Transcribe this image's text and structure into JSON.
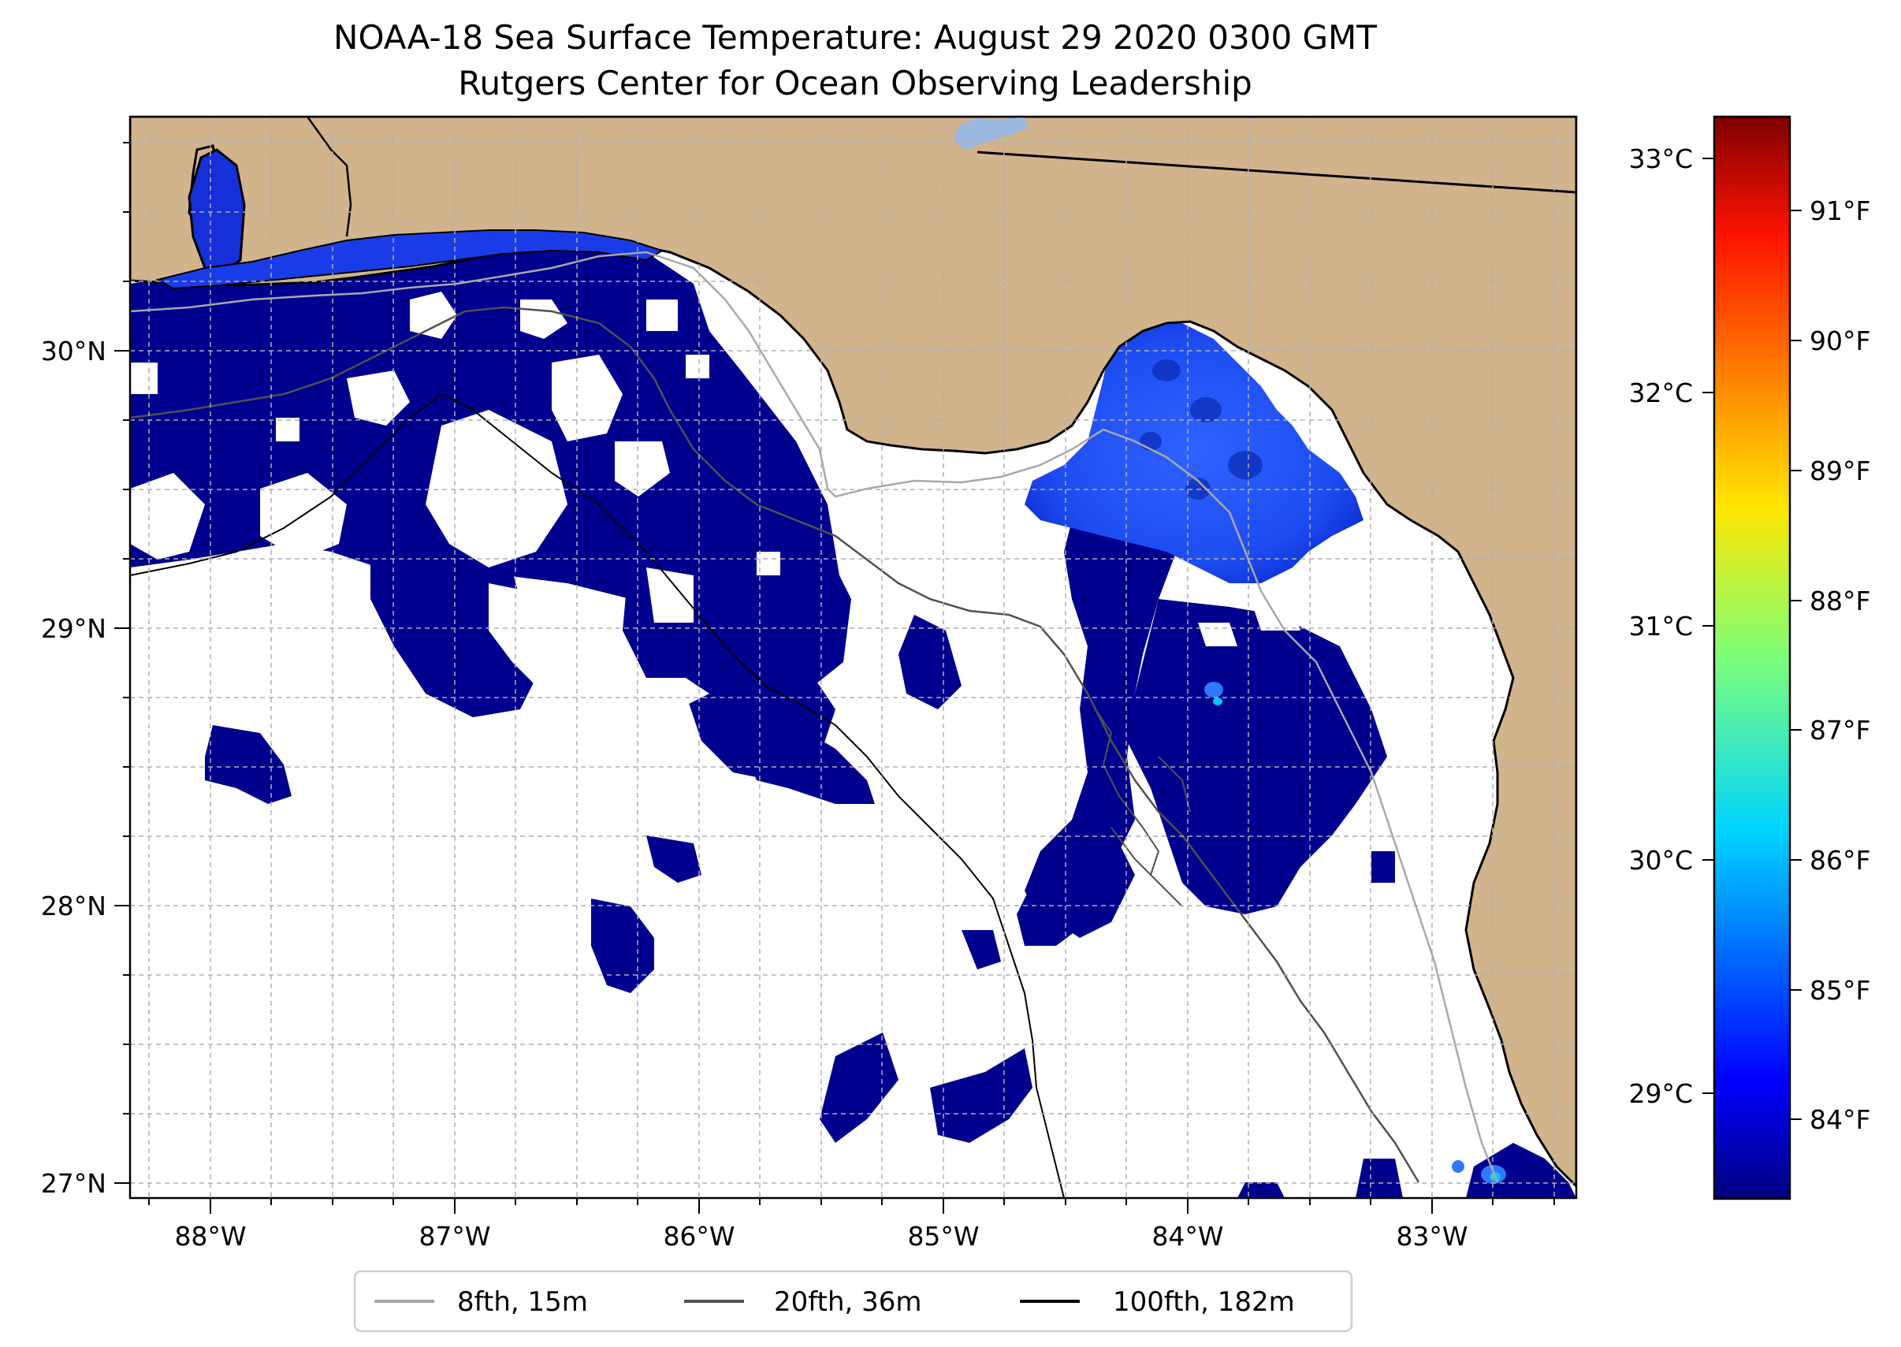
{
  "title": {
    "line1": "NOAA-18 Sea Surface Temperature: August 29 2020 0300 GMT",
    "line2": "Rutgers Center for Ocean Observing Leadership"
  },
  "map": {
    "lon_labels": [
      "88°W",
      "87°W",
      "86°W",
      "85°W",
      "84°W",
      "83°W"
    ],
    "lat_labels": [
      "30°N",
      "29°N",
      "28°N",
      "27°N"
    ],
    "lon_range": [
      -88.33,
      -82.4
    ],
    "lat_range": [
      26.93,
      30.85
    ],
    "colors": {
      "land": "#d2b48c",
      "water_nodata": "#ffffff",
      "cold_sst": "#00008f",
      "mid_sst": "#1a4bff",
      "grid": "#b0b0b0",
      "lake": "#9bb8e0"
    }
  },
  "colorbar": {
    "celsius_labels": [
      "33°C",
      "32°C",
      "31°C",
      "30°C",
      "29°C"
    ],
    "fahrenheit_labels": [
      "91°F",
      "90°F",
      "89°F",
      "88°F",
      "87°F",
      "86°F",
      "85°F",
      "84°F"
    ],
    "colormap": "jet"
  },
  "legend": {
    "items": [
      {
        "label": "8fth, 15m",
        "color": "#a8a8a8"
      },
      {
        "label": "20fth, 36m",
        "color": "#505050"
      },
      {
        "label": "100fth, 182m",
        "color": "#000000"
      }
    ]
  }
}
